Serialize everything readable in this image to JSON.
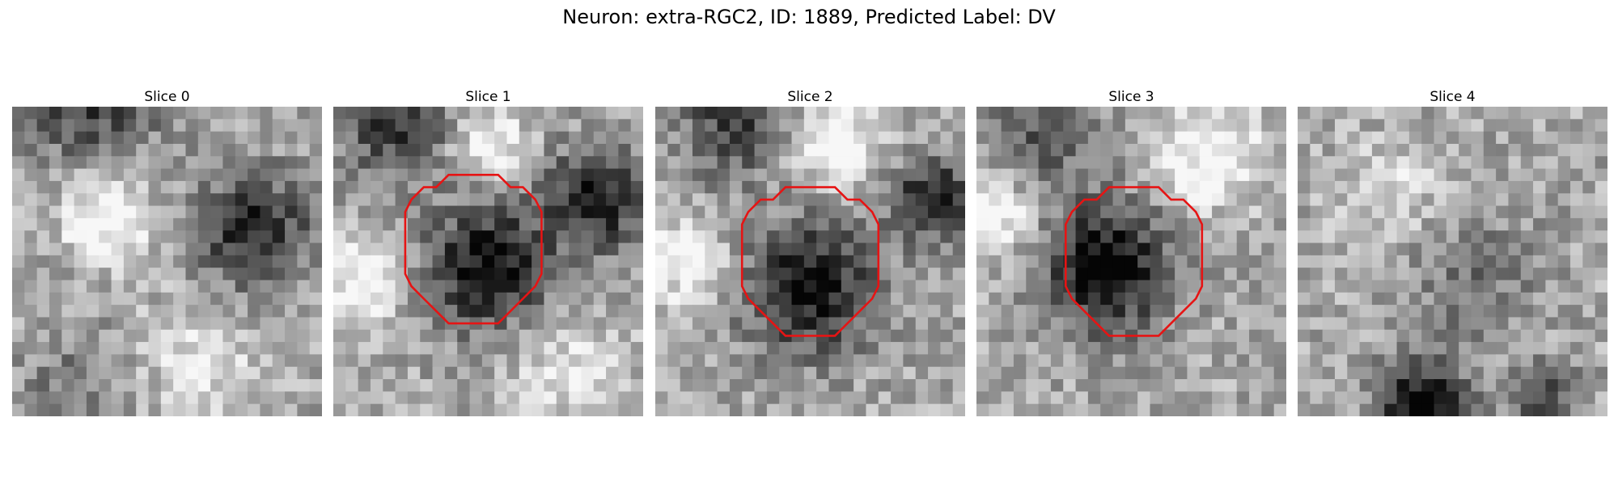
{
  "figure": {
    "title": "Neuron: extra-RGC2, ID: 1889, Predicted Label: DV",
    "panels": [
      {
        "label": "Slice 0",
        "outline": false,
        "seed": 11,
        "darks": [
          [
            0.78,
            0.4,
            0.2,
            0.55
          ],
          [
            0.25,
            -0.05,
            0.25,
            0.45
          ],
          [
            0.2,
            0.9,
            0.2,
            0.2
          ]
        ],
        "lights": [
          [
            0.3,
            0.35,
            0.15,
            0.45
          ],
          [
            0.6,
            0.8,
            0.2,
            0.25
          ]
        ]
      },
      {
        "label": "Slice 1",
        "outline": true,
        "seed": 23,
        "darks": [
          [
            0.5,
            0.52,
            0.22,
            0.62
          ],
          [
            0.85,
            0.3,
            0.18,
            0.55
          ],
          [
            0.2,
            0.05,
            0.2,
            0.45
          ]
        ],
        "lights": [
          [
            0.1,
            0.55,
            0.15,
            0.4
          ],
          [
            0.5,
            0.12,
            0.12,
            0.4
          ],
          [
            0.75,
            0.85,
            0.2,
            0.25
          ]
        ]
      },
      {
        "label": "Slice 2",
        "outline": true,
        "seed": 37,
        "darks": [
          [
            0.5,
            0.58,
            0.23,
            0.62
          ],
          [
            0.9,
            0.3,
            0.15,
            0.55
          ],
          [
            0.25,
            0.05,
            0.2,
            0.4
          ]
        ],
        "lights": [
          [
            0.58,
            0.12,
            0.15,
            0.45
          ],
          [
            0.1,
            0.5,
            0.15,
            0.35
          ]
        ]
      },
      {
        "label": "Slice 3",
        "outline": true,
        "seed": 53,
        "darks": [
          [
            0.42,
            0.52,
            0.22,
            0.7
          ],
          [
            0.2,
            0.1,
            0.2,
            0.3
          ]
        ],
        "lights": [
          [
            0.05,
            0.35,
            0.15,
            0.4
          ],
          [
            0.75,
            0.15,
            0.2,
            0.35
          ]
        ]
      },
      {
        "label": "Slice 4",
        "outline": false,
        "seed": 71,
        "darks": [
          [
            0.55,
            0.55,
            0.25,
            0.2
          ],
          [
            0.4,
            0.97,
            0.15,
            0.7
          ],
          [
            0.8,
            0.95,
            0.12,
            0.4
          ]
        ],
        "lights": [
          [
            0.3,
            0.3,
            0.2,
            0.2
          ]
        ]
      }
    ],
    "outline_color": "#e61414",
    "colormap": "grayscale"
  }
}
